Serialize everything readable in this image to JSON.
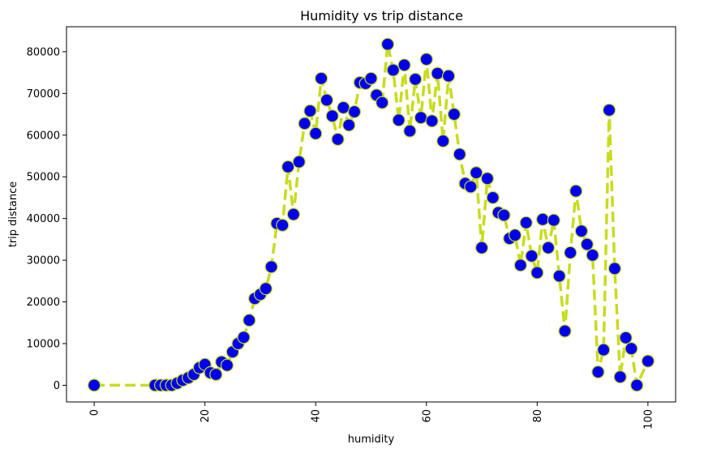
{
  "chart_data": {
    "type": "line",
    "title": "Humidity vs trip distance",
    "xlabel": "humidity",
    "ylabel": "trip distance",
    "xlim": [
      -5,
      105
    ],
    "ylim": [
      -4000,
      86000
    ],
    "xticks": [
      0,
      20,
      40,
      60,
      80,
      100
    ],
    "yticks": [
      0,
      10000,
      20000,
      30000,
      40000,
      50000,
      60000,
      70000,
      80000
    ],
    "xtick_rotation": 90,
    "grid": false,
    "line_color": "#c8dc1e",
    "line_style": "dashed",
    "marker_color": "#0000ee",
    "marker_edge_color": "#c8dc1e",
    "series": [
      {
        "x": [
          0,
          11,
          12,
          13,
          14,
          15,
          16,
          17,
          18,
          19,
          20,
          21,
          22,
          23,
          24,
          25,
          26,
          27,
          28,
          29,
          30,
          31,
          32,
          33,
          34,
          35,
          36,
          37,
          38,
          39,
          40,
          41,
          42,
          43,
          44,
          45,
          46,
          47,
          48,
          49,
          50,
          51,
          52,
          53,
          54,
          55,
          56,
          57,
          58,
          59,
          60,
          61,
          62,
          63,
          64,
          65,
          66,
          67,
          68,
          69,
          70,
          71,
          72,
          73,
          74,
          75,
          76,
          77,
          78,
          79,
          80,
          81,
          82,
          83,
          84,
          85,
          86,
          87,
          88,
          89,
          90,
          91,
          92,
          93,
          94,
          95,
          96,
          97,
          98,
          100
        ],
        "y": [
          0,
          0,
          0,
          0,
          0,
          500,
          1200,
          1800,
          2600,
          4200,
          5000,
          3000,
          2600,
          5600,
          4800,
          8000,
          10000,
          11500,
          15600,
          20800,
          21800,
          23200,
          28400,
          38800,
          38400,
          52400,
          41000,
          53600,
          62800,
          65800,
          60400,
          73600,
          68400,
          64600,
          59000,
          66600,
          62400,
          65600,
          72600,
          72400,
          73600,
          69600,
          67800,
          81800,
          75600,
          63600,
          76800,
          61000,
          73400,
          64200,
          78200,
          63400,
          74800,
          58600,
          74200,
          65000,
          55400,
          48400,
          47600,
          51000,
          33000,
          49600,
          45000,
          41400,
          40800,
          35200,
          36000,
          28800,
          39000,
          31000,
          27000,
          39800,
          33000,
          39600,
          26200,
          13000,
          31800,
          46600,
          37000,
          33800,
          31200,
          3200,
          8500,
          66000,
          28000,
          2000,
          11400,
          8800,
          0,
          5800
        ]
      }
    ]
  }
}
